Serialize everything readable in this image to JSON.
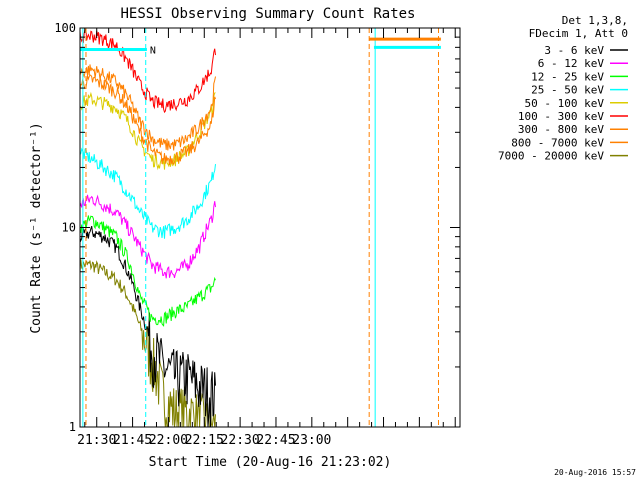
{
  "chart_data": {
    "type": "line",
    "title": "HESSI Observing Summary Count Rates",
    "xlabel": "Start Time (20-Aug-16 21:23:02)",
    "ylabel": "Count Rate (s⁻¹ detector⁻¹)",
    "yscale": "log",
    "ylim": [
      1,
      100
    ],
    "xlim_minutes_after_21_23": [
      0,
      159
    ],
    "x_tick_labels": [
      "21:30",
      "21:45",
      "22:00",
      "22:15",
      "22:30",
      "22:45",
      "23:00"
    ],
    "x_tick_minutes": [
      7,
      22,
      37,
      52,
      67,
      82,
      97
    ],
    "y_tick_labels": [
      "1",
      "10",
      "100"
    ],
    "legend_placement": "outside-right",
    "legend_header": [
      "Det 1,3,8,",
      "FDecim 1, Att 0"
    ],
    "grid": false,
    "data_window_minutes": [
      [
        0,
        57
      ],
      [
        122,
        151
      ]
    ],
    "vertical_markers": [
      {
        "minute": 1.2,
        "color": "#00ffff",
        "style": "solid"
      },
      {
        "minute": 2.5,
        "color": "#ff8000",
        "style": "dashed"
      },
      {
        "minute": 27.5,
        "color": "#00ffff",
        "style": "dashed"
      },
      {
        "minute": 121,
        "color": "#ff8000",
        "style": "dashed"
      },
      {
        "minute": 123.5,
        "color": "#00ffff",
        "style": "solid"
      },
      {
        "minute": 150,
        "color": "#ff8000",
        "style": "dashed"
      }
    ],
    "flag_bars": [
      {
        "label": "N",
        "color": "#00ffff",
        "x_from": 0,
        "x_to": 28,
        "y": 78
      },
      {
        "label": "",
        "color": "#ff8000",
        "x_from": 121,
        "x_to": 151,
        "y": 88
      },
      {
        "label": "",
        "color": "#00ffff",
        "x_from": 123,
        "x_to": 151,
        "y": 80
      }
    ],
    "x_minutes": [
      0,
      5,
      10,
      15,
      20,
      25,
      30,
      35,
      40,
      45,
      50,
      55,
      57
    ],
    "series": [
      {
        "name": "3 - 6 keV",
        "color": "#000000",
        "values": [
          9,
          9.5,
          9,
          8,
          6,
          4,
          2.5,
          2,
          1.8,
          1.8,
          1.6,
          1.5,
          1.4
        ]
      },
      {
        "name": "6 - 12 keV",
        "color": "#ff00ff",
        "values": [
          13,
          14,
          13,
          12,
          10,
          8,
          6.5,
          6,
          6,
          6.5,
          8,
          11,
          14
        ]
      },
      {
        "name": "12 - 25 keV",
        "color": "#00ff00",
        "values": [
          10,
          11,
          10,
          9,
          7,
          4.5,
          3.5,
          3.5,
          3.8,
          4,
          4.5,
          5,
          5.5
        ]
      },
      {
        "name": "25 - 50 keV",
        "color": "#00ffff",
        "values": [
          24,
          22,
          20,
          18,
          15,
          12,
          10,
          9.5,
          10,
          11,
          13,
          17,
          22
        ]
      },
      {
        "name": "50 - 100 keV",
        "color": "#dccc00",
        "values": [
          42,
          44,
          42,
          40,
          34,
          26,
          22,
          21,
          22,
          24,
          30,
          38,
          48
        ]
      },
      {
        "name": "100 - 300 keV",
        "color": "#ff0000",
        "values": [
          90,
          92,
          88,
          82,
          68,
          52,
          43,
          41,
          42,
          44,
          50,
          62,
          82
        ]
      },
      {
        "name": "300 - 800 keV",
        "color": "#ff8000",
        "values": [
          52,
          55,
          52,
          48,
          40,
          30,
          24,
          22,
          22.5,
          24,
          27,
          33,
          48
        ]
      },
      {
        "name": "800 - 7000 keV",
        "color": "#ff8000",
        "values": [
          60,
          62,
          58,
          54,
          45,
          34,
          28,
          26,
          26,
          28,
          32,
          40,
          58
        ]
      },
      {
        "name": "7000 - 20000 keV",
        "color": "#808000",
        "values": [
          6.5,
          6.5,
          6,
          5.5,
          4.5,
          3.2,
          2.2,
          1.4,
          1.2,
          1.2,
          1.1,
          1.0,
          1.0
        ]
      }
    ]
  },
  "footer": {
    "timestamp": "20-Aug-2016 15:57"
  }
}
